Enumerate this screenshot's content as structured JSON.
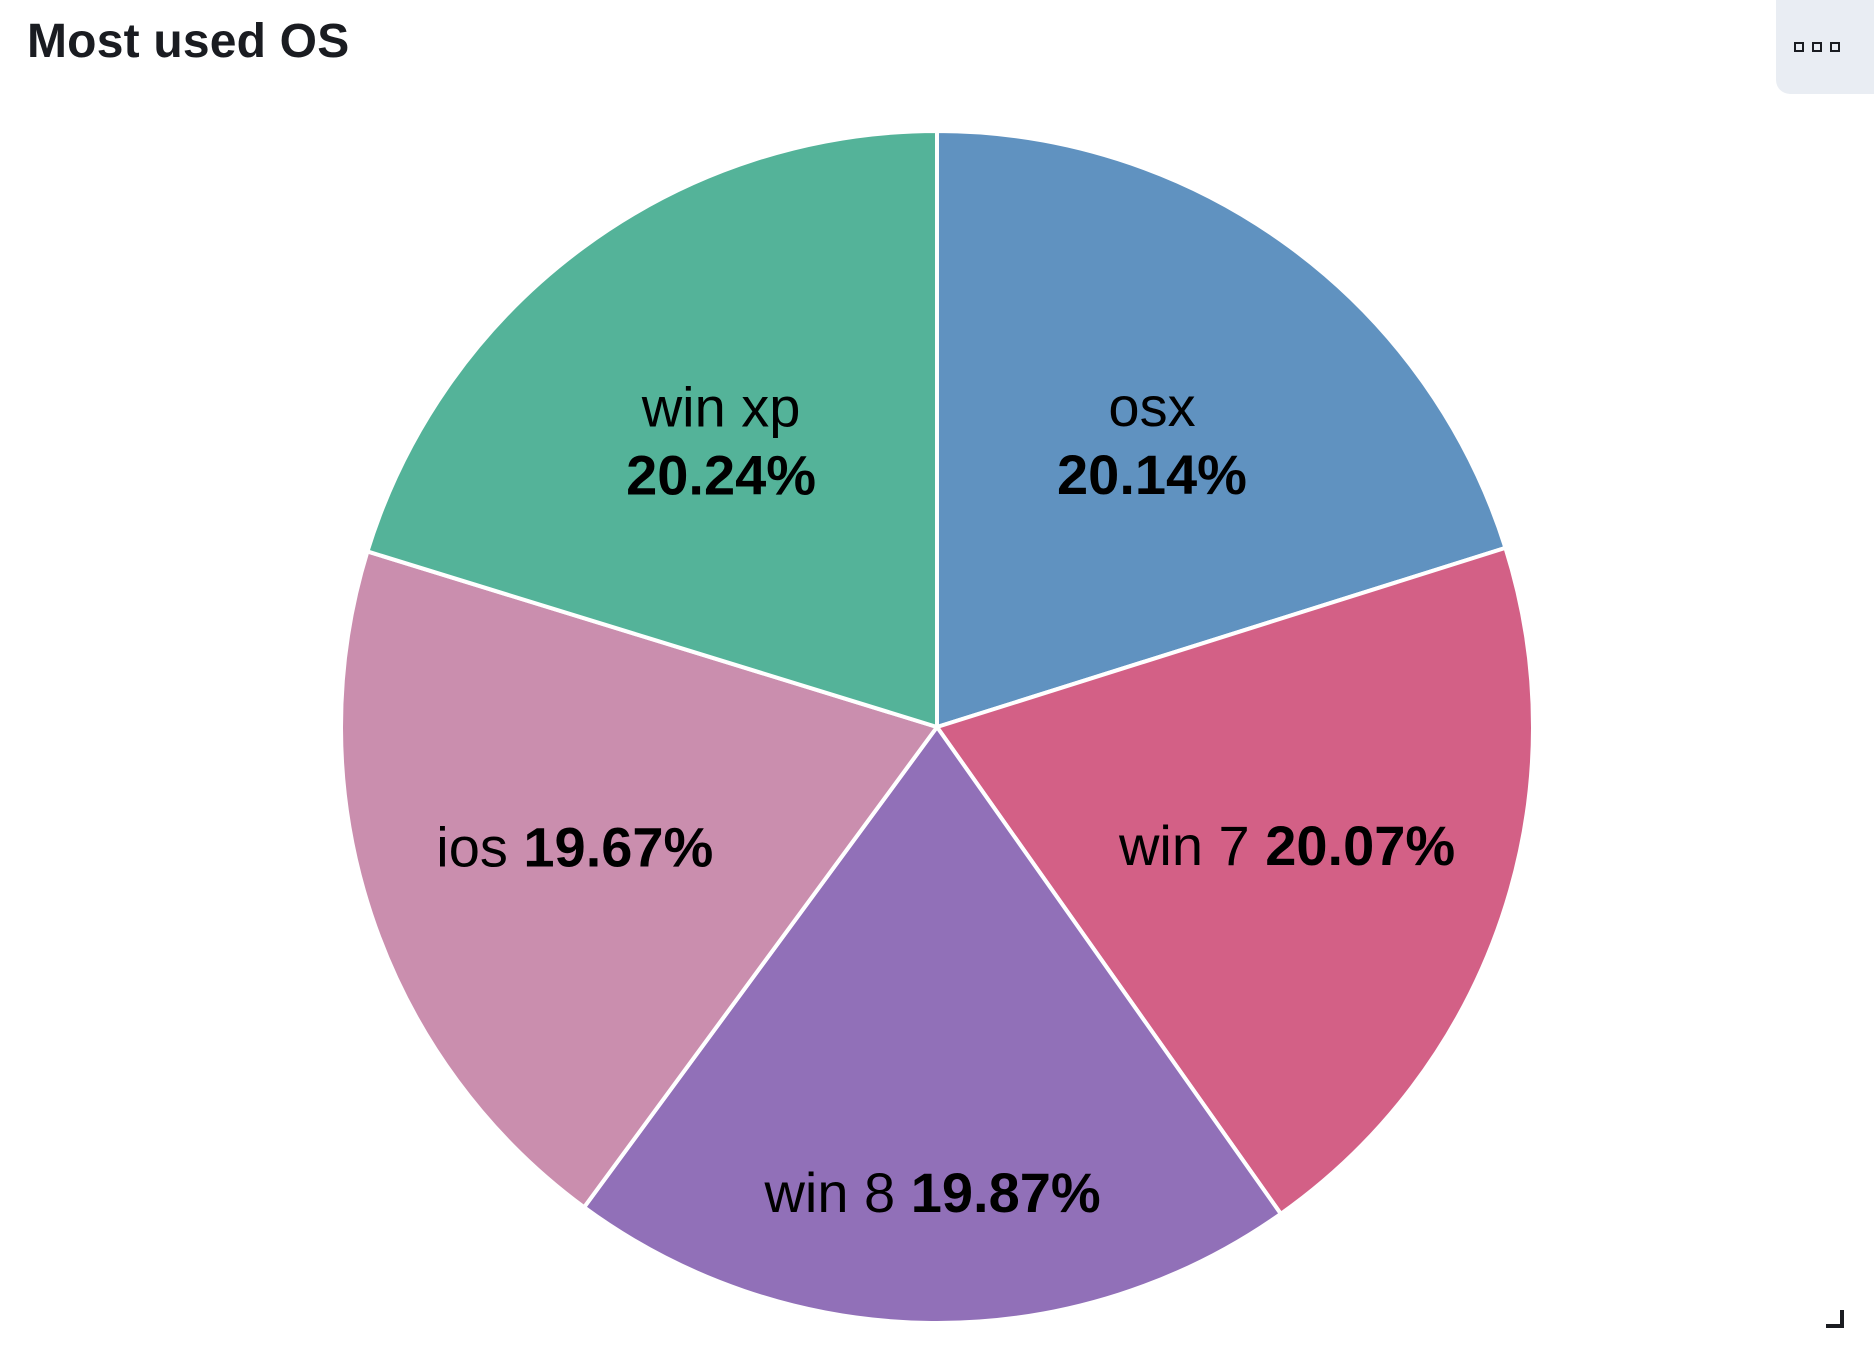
{
  "panel": {
    "title": "Most used OS",
    "menu_icon": "options-icon",
    "resize_icon": "resize-handle-icon"
  },
  "chart_data": {
    "type": "pie",
    "title": "Most used OS",
    "slices": [
      {
        "label": "osx",
        "percent_text": "20.14%",
        "value": 20.14,
        "color": "#6092c0"
      },
      {
        "label": "win 7",
        "percent_text": "20.07%",
        "value": 20.07,
        "color": "#d36086"
      },
      {
        "label": "win 8",
        "percent_text": "19.87%",
        "value": 19.87,
        "color": "#9170b8"
      },
      {
        "label": "ios",
        "percent_text": "19.67%",
        "value": 19.67,
        "color": "#ca8eae"
      },
      {
        "label": "win xp",
        "percent_text": "20.24%",
        "value": 20.24,
        "color": "#54b399"
      }
    ],
    "start_angle_deg": 0,
    "direction": "clockwise",
    "legend": "none"
  }
}
